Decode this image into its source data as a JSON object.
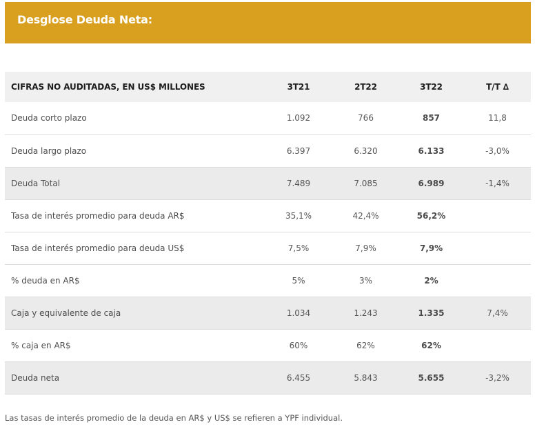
{
  "title": "Desglose Deuda Neta:",
  "colors": {
    "banner": "#d9a01f",
    "header_bg": "#f0f0f0",
    "shaded_row": "#ebebeb"
  },
  "table": {
    "headers": [
      "CIFRAS NO AUDITADAS, EN US$ MILLONES",
      "3T21",
      "2T22",
      "3T22",
      "T/T ∆"
    ],
    "rows": [
      {
        "label": "Deuda corto plazo",
        "v3t21": "1.092",
        "v2t22": "766",
        "v3t22": "857",
        "tt": "11,8",
        "shaded": false
      },
      {
        "label": "Deuda largo plazo",
        "v3t21": "6.397",
        "v2t22": "6.320",
        "v3t22": "6.133",
        "tt": "-3,0%",
        "shaded": false
      },
      {
        "label": "Deuda Total",
        "v3t21": "7.489",
        "v2t22": "7.085",
        "v3t22": "6.989",
        "tt": "-1,4%",
        "shaded": true
      },
      {
        "label": "Tasa de interés promedio para deuda AR$",
        "v3t21": "35,1%",
        "v2t22": "42,4%",
        "v3t22": "56,2%",
        "tt": "",
        "shaded": false
      },
      {
        "label": "Tasa de interés promedio para deuda US$",
        "v3t21": "7,5%",
        "v2t22": "7,9%",
        "v3t22": "7,9%",
        "tt": "",
        "shaded": false
      },
      {
        "label": "% deuda en AR$",
        "v3t21": "5%",
        "v2t22": "3%",
        "v3t22": "2%",
        "tt": "",
        "shaded": false
      },
      {
        "label": "Caja y equivalente de caja",
        "v3t21": "1.034",
        "v2t22": "1.243",
        "v3t22": "1.335",
        "tt": "7,4%",
        "shaded": true
      },
      {
        "label": "% caja en AR$",
        "v3t21": "60%",
        "v2t22": "62%",
        "v3t22": "62%",
        "tt": "",
        "shaded": false
      },
      {
        "label": "Deuda neta",
        "v3t21": "6.455",
        "v2t22": "5.843",
        "v3t22": "5.655",
        "tt": "-3,2%",
        "shaded": true
      }
    ]
  },
  "footnote": "Las tasas de interés promedio de la deuda en AR$ y US$ se refieren a YPF individual."
}
